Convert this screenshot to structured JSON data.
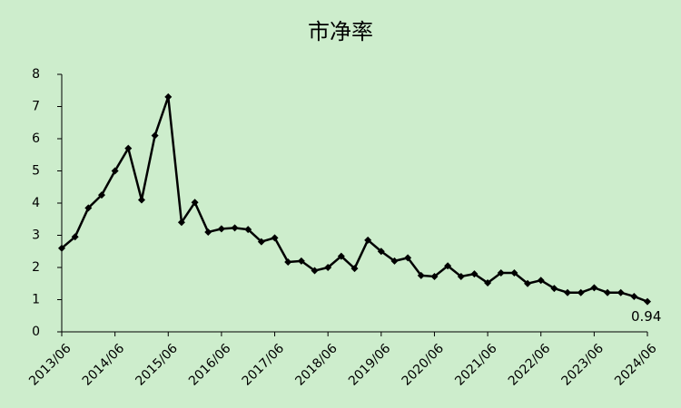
{
  "chart_data": {
    "type": "line",
    "title": "市净率",
    "categories": [
      "2013/06",
      null,
      null,
      null,
      "2014/06",
      null,
      null,
      null,
      "2015/06",
      null,
      null,
      null,
      "2016/06",
      null,
      null,
      null,
      "2017/06",
      null,
      null,
      null,
      "2018/06",
      null,
      null,
      null,
      "2019/06",
      null,
      null,
      null,
      "2020/06",
      null,
      null,
      null,
      "2021/06",
      null,
      null,
      null,
      "2022/06",
      null,
      null,
      null,
      "2023/06",
      null,
      null,
      null,
      "2024/06"
    ],
    "values": [
      2.6,
      2.95,
      3.85,
      4.25,
      5.0,
      5.7,
      4.1,
      6.1,
      7.3,
      3.4,
      4.02,
      3.1,
      3.2,
      3.23,
      3.18,
      2.8,
      2.92,
      2.17,
      2.2,
      1.9,
      2.0,
      2.35,
      1.97,
      2.85,
      2.5,
      2.2,
      2.3,
      1.75,
      1.72,
      2.05,
      1.72,
      1.8,
      1.52,
      1.83,
      1.83,
      1.5,
      1.6,
      1.35,
      1.22,
      1.22,
      1.37,
      1.22,
      1.22,
      1.1,
      0.94
    ],
    "color": "#000000",
    "ylim": [
      0,
      8
    ],
    "yticks": [
      0,
      1,
      2,
      3,
      4,
      5,
      6,
      7,
      8
    ],
    "grid": false
  }
}
